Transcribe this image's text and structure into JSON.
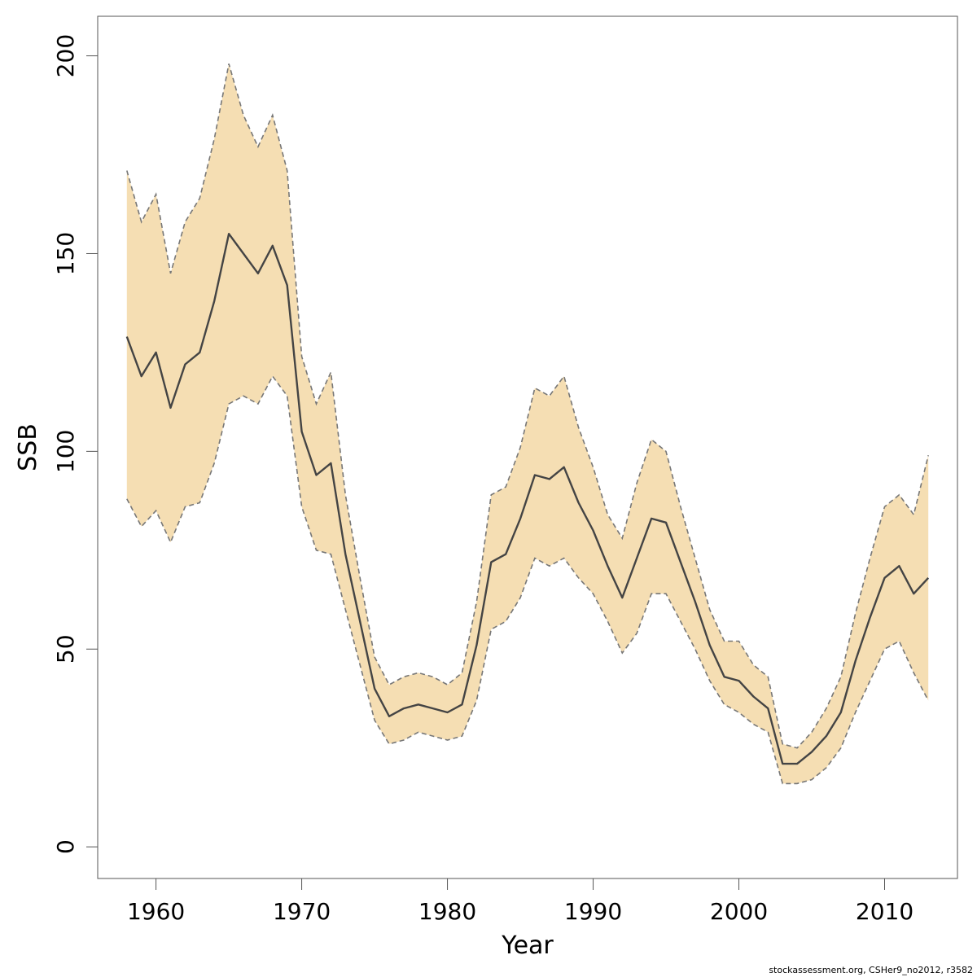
{
  "chart_data": {
    "type": "line",
    "title": "",
    "xlabel": "Year",
    "ylabel": "SSB",
    "xlim": [
      1956,
      2015
    ],
    "ylim": [
      -8,
      210
    ],
    "x_ticks": [
      1960,
      1970,
      1980,
      1990,
      2000,
      2010
    ],
    "y_ticks": [
      0,
      50,
      100,
      150,
      200
    ],
    "grid": false,
    "legend": "none",
    "colors": {
      "band": "#f5deb3",
      "line": "#444444",
      "bounds": "#777777"
    },
    "x": [
      1958,
      1959,
      1960,
      1961,
      1962,
      1963,
      1964,
      1965,
      1966,
      1967,
      1968,
      1969,
      1970,
      1971,
      1972,
      1973,
      1974,
      1975,
      1976,
      1977,
      1978,
      1979,
      1980,
      1981,
      1982,
      1983,
      1984,
      1985,
      1986,
      1987,
      1988,
      1989,
      1990,
      1991,
      1992,
      1993,
      1994,
      1995,
      1996,
      1997,
      1998,
      1999,
      2000,
      2001,
      2002,
      2003,
      2004,
      2005,
      2006,
      2007,
      2008,
      2009,
      2010,
      2011,
      2012,
      2013
    ],
    "series": [
      {
        "name": "",
        "role": "estimate",
        "values": [
          129,
          119,
          125,
          111,
          122,
          125,
          138,
          155,
          150,
          145,
          152,
          142,
          105,
          94,
          97,
          74,
          57,
          40,
          33,
          35,
          36,
          35,
          34,
          36,
          51,
          72,
          74,
          83,
          94,
          93,
          96,
          87,
          80,
          71,
          63,
          73,
          83,
          82,
          72,
          62,
          51,
          43,
          42,
          38,
          35,
          21,
          21,
          24,
          28,
          34,
          47,
          58,
          68,
          71,
          64,
          68
        ]
      },
      {
        "name": "",
        "role": "upper",
        "values": [
          171,
          158,
          165,
          145,
          158,
          164,
          179,
          198,
          185,
          177,
          185,
          171,
          124,
          112,
          120,
          89,
          68,
          48,
          41,
          43,
          44,
          43,
          41,
          44,
          62,
          89,
          91,
          101,
          116,
          114,
          119,
          106,
          96,
          84,
          78,
          92,
          103,
          100,
          86,
          73,
          60,
          52,
          52,
          46,
          43,
          26,
          25,
          29,
          35,
          43,
          59,
          73,
          86,
          89,
          84,
          99
        ]
      },
      {
        "name": "",
        "role": "lower",
        "values": [
          88,
          81,
          85,
          77,
          86,
          87,
          97,
          112,
          114,
          112,
          119,
          114,
          86,
          75,
          74,
          60,
          46,
          32,
          26,
          27,
          29,
          28,
          27,
          28,
          37,
          55,
          57,
          63,
          73,
          71,
          73,
          68,
          64,
          57,
          49,
          54,
          64,
          64,
          57,
          50,
          42,
          36,
          34,
          31,
          29,
          16,
          16,
          17,
          20,
          25,
          34,
          42,
          50,
          52,
          44,
          37
        ]
      }
    ],
    "footer": "stockassessment.org, CSHer9_no2012, r3582"
  }
}
